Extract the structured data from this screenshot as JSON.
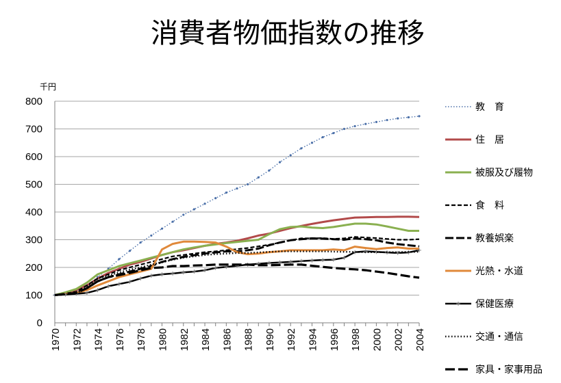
{
  "chart_data": {
    "type": "line",
    "title": "消費者物価指数の推移",
    "y_unit": "千円",
    "xlabel": "",
    "ylabel": "",
    "ylim": [
      0,
      800
    ],
    "yticks": [
      0,
      100,
      200,
      300,
      400,
      500,
      600,
      700,
      800
    ],
    "x": [
      1970,
      1971,
      1972,
      1973,
      1974,
      1975,
      1976,
      1977,
      1978,
      1979,
      1980,
      1981,
      1982,
      1983,
      1984,
      1985,
      1986,
      1987,
      1988,
      1989,
      1990,
      1991,
      1992,
      1993,
      1994,
      1995,
      1996,
      1997,
      1998,
      1999,
      2000,
      2001,
      2002,
      2003,
      2004
    ],
    "x_tick_labels": [
      "1970",
      "1972",
      "1974",
      "1976",
      "1978",
      "1980",
      "1982",
      "1984",
      "1986",
      "1988",
      "1990",
      "1992",
      "1994",
      "1996",
      "1998",
      "2000",
      "2002",
      "2004"
    ],
    "grid": "horizontal",
    "legend_position": "right",
    "series": [
      {
        "name": "教　育",
        "color": "#4a6fa8",
        "style": "dotted",
        "values": [
          100,
          105,
          112,
          135,
          165,
          195,
          230,
          260,
          290,
          315,
          340,
          365,
          390,
          410,
          430,
          450,
          470,
          485,
          500,
          525,
          550,
          580,
          605,
          630,
          650,
          670,
          685,
          700,
          710,
          718,
          725,
          732,
          738,
          742,
          746
        ]
      },
      {
        "name": "住　居",
        "color": "#b24a4a",
        "style": "solid",
        "values": [
          100,
          108,
          118,
          135,
          160,
          180,
          195,
          210,
          220,
          232,
          245,
          255,
          262,
          270,
          278,
          285,
          290,
          296,
          305,
          315,
          322,
          332,
          342,
          350,
          357,
          364,
          370,
          375,
          380,
          381,
          382,
          382,
          383,
          383,
          382
        ]
      },
      {
        "name": "被服及び履物",
        "color": "#8ab050",
        "style": "solid",
        "values": [
          100,
          110,
          122,
          145,
          175,
          190,
          205,
          215,
          225,
          235,
          245,
          255,
          265,
          272,
          278,
          283,
          288,
          292,
          296,
          300,
          320,
          338,
          346,
          348,
          344,
          342,
          346,
          352,
          358,
          358,
          355,
          348,
          340,
          332,
          332
        ]
      },
      {
        "name": "食　料",
        "color": "#000000",
        "style": "dashed",
        "values": [
          100,
          106,
          112,
          135,
          160,
          175,
          190,
          200,
          210,
          220,
          230,
          240,
          245,
          250,
          255,
          258,
          262,
          266,
          270,
          276,
          282,
          290,
          298,
          305,
          305,
          306,
          303,
          305,
          310,
          308,
          306,
          303,
          300,
          300,
          302
        ]
      },
      {
        "name": "教養娯楽",
        "color": "#000000",
        "style": "longdash",
        "values": [
          100,
          104,
          108,
          125,
          150,
          165,
          175,
          185,
          195,
          205,
          220,
          230,
          238,
          244,
          250,
          254,
          258,
          258,
          262,
          268,
          280,
          290,
          298,
          302,
          305,
          304,
          302,
          300,
          305,
          302,
          298,
          290,
          284,
          280,
          276
        ]
      },
      {
        "name": "光熱・水道",
        "color": "#e0893a",
        "style": "solid",
        "values": [
          100,
          104,
          108,
          118,
          135,
          150,
          165,
          175,
          185,
          195,
          265,
          285,
          293,
          293,
          292,
          290,
          275,
          255,
          248,
          250,
          255,
          258,
          262,
          262,
          262,
          262,
          265,
          262,
          275,
          270,
          266,
          270,
          272,
          268,
          268
        ]
      },
      {
        "name": "保健医療",
        "color": "#000000",
        "style": "solid-marker",
        "values": [
          100,
          102,
          105,
          108,
          118,
          132,
          140,
          148,
          160,
          170,
          175,
          178,
          182,
          185,
          190,
          198,
          202,
          206,
          210,
          213,
          216,
          218,
          220,
          223,
          225,
          227,
          228,
          235,
          255,
          258,
          256,
          254,
          252,
          254,
          262
        ]
      },
      {
        "name": "交通・通信",
        "color": "#000000",
        "style": "dotted-heavy",
        "values": [
          100,
          102,
          106,
          130,
          160,
          170,
          182,
          192,
          200,
          210,
          218,
          228,
          235,
          240,
          245,
          248,
          250,
          252,
          252,
          254,
          256,
          258,
          258,
          258,
          258,
          258,
          257,
          256,
          256,
          255,
          255,
          255,
          255,
          256,
          256
        ]
      },
      {
        "name": "家具・家事用品",
        "color": "#000000",
        "style": "longdash-heavy",
        "values": [
          100,
          104,
          108,
          125,
          150,
          165,
          172,
          180,
          190,
          198,
          200,
          205,
          205,
          207,
          208,
          210,
          210,
          210,
          210,
          208,
          208,
          209,
          210,
          210,
          206,
          202,
          198,
          195,
          193,
          190,
          185,
          180,
          174,
          168,
          163
        ]
      }
    ]
  }
}
